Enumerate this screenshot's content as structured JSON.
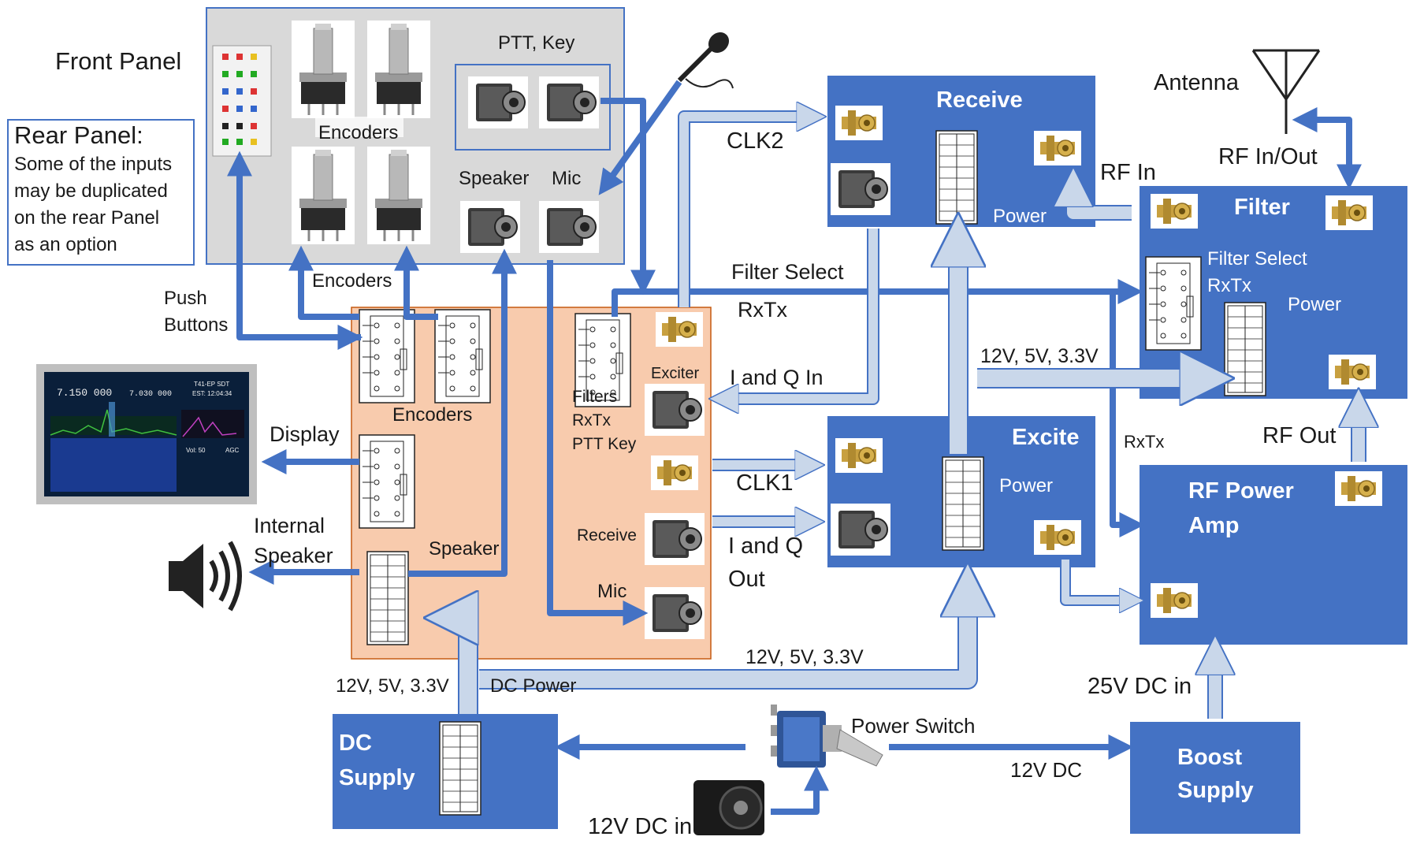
{
  "labels": {
    "front_panel": "Front Panel",
    "rear_panel_title": "Rear Panel:",
    "rear_panel_note": [
      "Some of the inputs",
      "may be duplicated",
      "on the rear Panel",
      "as an option"
    ],
    "ptt_key": "PTT, Key",
    "encoders_top": "Encoders",
    "speaker_jack": "Speaker",
    "mic_jack": "Mic",
    "encoders_arrows": "Encoders",
    "push_buttons": [
      "Push",
      "Buttons"
    ],
    "encoders_board": "Encoders",
    "display": "Display",
    "internal_speaker": [
      "Internal",
      "Speaker"
    ],
    "speaker_board": "Speaker",
    "exciter": "Exciter",
    "filters_rxtx_ptt": [
      "Filters",
      "RxTx",
      "PTT Key"
    ],
    "receive_board": "Receive",
    "mic_board": "Mic",
    "clk2": "CLK2",
    "filter_select": "Filter Select",
    "rxtx": "RxTx",
    "i_and_q_in": "I and Q In",
    "clk1": "CLK1",
    "i_and_q_out": [
      "I and Q",
      "Out"
    ],
    "v_12_5_33_mid": "12V, 5V, 3.3V",
    "v_12_5_33_bottom": "12V, 5V, 3.3V",
    "v_12_5_33_left": "12V, 5V, 3.3V",
    "dc_power": "DC Power",
    "power_switch": "Power Switch",
    "v12_dc": "12V DC",
    "v12_dc_in": "12V DC in",
    "v25_dc_in": "25V DC in",
    "antenna": "Antenna",
    "rf_in_out": "RF In/Out",
    "rf_in": "RF In",
    "rf_out": "RF Out",
    "rxtx_right": "RxTx"
  },
  "blocks": {
    "receive": {
      "title": "Receive",
      "power": "Power"
    },
    "filter": {
      "title": "Filter",
      "filter_select": "Filter Select",
      "rxtx": "RxTx",
      "power": "Power"
    },
    "excite": {
      "title": "Excite",
      "power": "Power"
    },
    "rf_power_amp": {
      "title": [
        "RF Power",
        "Amp"
      ]
    },
    "boost_supply": {
      "title": [
        "Boost",
        "Supply"
      ]
    },
    "dc_supply": {
      "title": [
        "DC",
        "Supply"
      ]
    }
  },
  "display_screen": {
    "freq_a": "7.150 000",
    "freq_b": "7.030 000",
    "model": "T41-EP SDT",
    "time": "EST: 12:04:34",
    "vol": "Vol: 50",
    "agc": "AGC"
  },
  "header_pins": [
    "1",
    "2",
    "3",
    "4",
    "5",
    "6",
    "7",
    "8",
    "9",
    "10",
    "11",
    "12",
    "13",
    "14",
    "15",
    "16"
  ],
  "colors": {
    "block_blue": "#4472c4",
    "arrow_dark": "#4472c4",
    "arrow_light": "#c9d7ea",
    "panel_gray": "#d9d9d9",
    "board_orange": "#f8cbad",
    "sma_gold": "#c8a040"
  }
}
